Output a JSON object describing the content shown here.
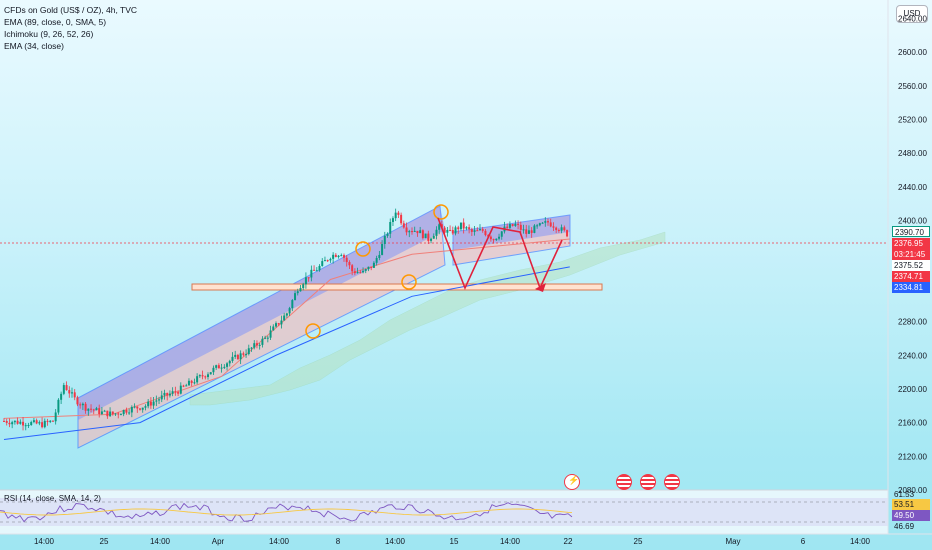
{
  "legend": {
    "title": "CFDs on Gold (US$ / OZ), 4h, TVC",
    "ind1": "EMA (89, close, 0, SMA, 5)",
    "ind2": "Ichimoku (9, 26, 52, 26)",
    "ind3": "EMA (34, close)"
  },
  "currency": "USD",
  "price_axis": [
    "2640.00",
    "2600.00",
    "2560.00",
    "2520.00",
    "2480.00",
    "2440.00",
    "2400.00",
    "2360.00",
    "2320.00",
    "2280.00",
    "2240.00",
    "2200.00",
    "2160.00",
    "2120.00",
    "2080.00"
  ],
  "time_axis": [
    "14:00",
    "25",
    "14:00",
    "Apr",
    "14:00",
    "8",
    "14:00",
    "15",
    "14:00",
    "22",
    "25",
    "May",
    "6",
    "14:00"
  ],
  "price_tags": {
    "top": "2390.70",
    "close": "2376.95",
    "countdown": "03:21:45",
    "ema_a": "2375.52",
    "ema_b": "2374.71",
    "ema_slow": "2334.81"
  },
  "rsi": {
    "label": "RSI (14, close, SMA, 14, 2)",
    "levels": [
      "61.53",
      "53.51",
      "49.50",
      "46.69"
    ]
  },
  "colors": {
    "up": "#089981",
    "down": "#f23645",
    "ema_fast": "#f0807a",
    "ema_slow": "#2962ff",
    "cloud": "#b7e4c7",
    "channel": "#5a7dff",
    "zigzag": "#e0223c",
    "marker": "#ff9800"
  },
  "chart_data": {
    "type": "candlestick",
    "title": "CFDs on Gold (US$ / OZ), 4h, TVC",
    "ylim": [
      2080,
      2650
    ],
    "y_ticks": [
      2640,
      2600,
      2560,
      2520,
      2480,
      2440,
      2400,
      2360,
      2320,
      2280,
      2240,
      2200,
      2160,
      2120,
      2080
    ],
    "x_ticks": [
      "14:00",
      "25",
      "14:00",
      "Apr",
      "14:00",
      "8",
      "14:00",
      "15",
      "14:00",
      "22",
      "25",
      "May",
      "6",
      "14:00"
    ],
    "path_points": [
      [
        0,
        2162
      ],
      [
        8,
        2160
      ],
      [
        14,
        2158
      ],
      [
        18,
        2162
      ],
      [
        22,
        2205
      ],
      [
        26,
        2188
      ],
      [
        30,
        2178
      ],
      [
        36,
        2172
      ],
      [
        40,
        2170
      ],
      [
        46,
        2176
      ],
      [
        52,
        2180
      ],
      [
        58,
        2190
      ],
      [
        64,
        2198
      ],
      [
        70,
        2210
      ],
      [
        78,
        2225
      ],
      [
        84,
        2235
      ],
      [
        90,
        2246
      ],
      [
        96,
        2260
      ],
      [
        100,
        2275
      ],
      [
        104,
        2290
      ],
      [
        108,
        2320
      ],
      [
        112,
        2335
      ],
      [
        116,
        2345
      ],
      [
        120,
        2358
      ],
      [
        124,
        2362
      ],
      [
        128,
        2340
      ],
      [
        132,
        2338
      ],
      [
        136,
        2348
      ],
      [
        140,
        2378
      ],
      [
        144,
        2412
      ],
      [
        146,
        2400
      ],
      [
        148,
        2390
      ],
      [
        152,
        2388
      ],
      [
        156,
        2378
      ],
      [
        160,
        2392
      ],
      [
        164,
        2385
      ],
      [
        168,
        2394
      ],
      [
        172,
        2386
      ],
      [
        176,
        2388
      ],
      [
        180,
        2378
      ],
      [
        184,
        2390
      ],
      [
        188,
        2395
      ],
      [
        192,
        2385
      ],
      [
        196,
        2392
      ],
      [
        200,
        2398
      ],
      [
        204,
        2391
      ],
      [
        208,
        2382
      ]
    ],
    "ema_fast": [
      [
        0,
        2165
      ],
      [
        40,
        2170
      ],
      [
        80,
        2215
      ],
      [
        120,
        2330
      ],
      [
        150,
        2360
      ],
      [
        208,
        2378
      ]
    ],
    "ema_slow": [
      [
        0,
        2140
      ],
      [
        50,
        2160
      ],
      [
        100,
        2240
      ],
      [
        150,
        2310
      ],
      [
        208,
        2345
      ]
    ],
    "annotations": {
      "support_zone": [
        2340,
        2347
      ],
      "last_close": 2376.95
    }
  }
}
